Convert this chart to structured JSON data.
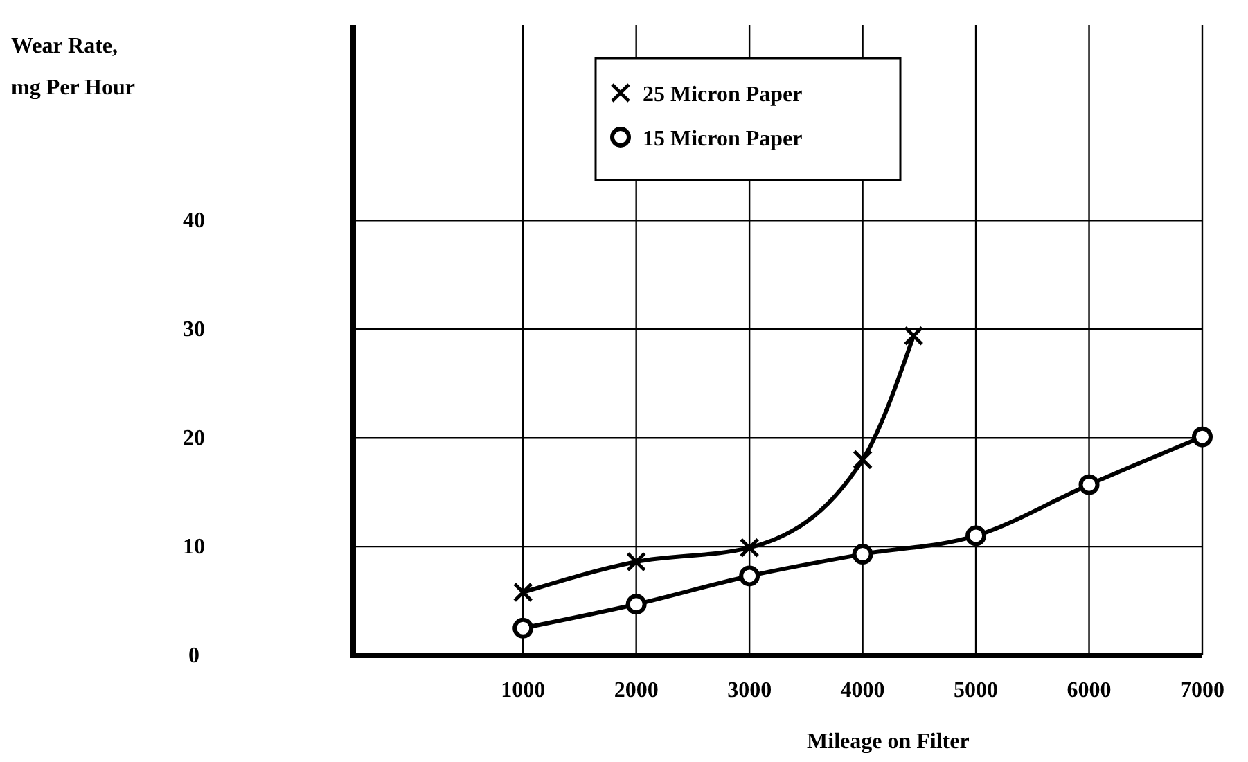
{
  "chart_data": {
    "type": "line",
    "xlabel": "Mileage on Filter",
    "ylabel": "Wear Rate, mg Per Hour",
    "xlim": [
      -500,
      7000
    ],
    "ylim": [
      0,
      58
    ],
    "xticks": [
      1000,
      2000,
      3000,
      4000,
      5000,
      6000,
      7000
    ],
    "yticks": [
      0,
      10,
      20,
      30,
      40
    ],
    "grid": true,
    "legend": "top",
    "line_style": "solid",
    "series": [
      {
        "name": "25 Micron Paper",
        "color": "#000000",
        "marker": "cross",
        "x": [
          1000,
          2000,
          3000,
          4000,
          4450
        ],
        "values": [
          5.8,
          8.6,
          9.9,
          18.0,
          29.4
        ]
      },
      {
        "name": "15 Micron Paper",
        "color": "#000000",
        "marker": "circle",
        "x": [
          1000,
          2000,
          3000,
          4000,
          5000,
          6000,
          7000
        ],
        "values": [
          2.5,
          4.7,
          7.3,
          9.3,
          11.0,
          15.7,
          20.1
        ]
      }
    ]
  }
}
